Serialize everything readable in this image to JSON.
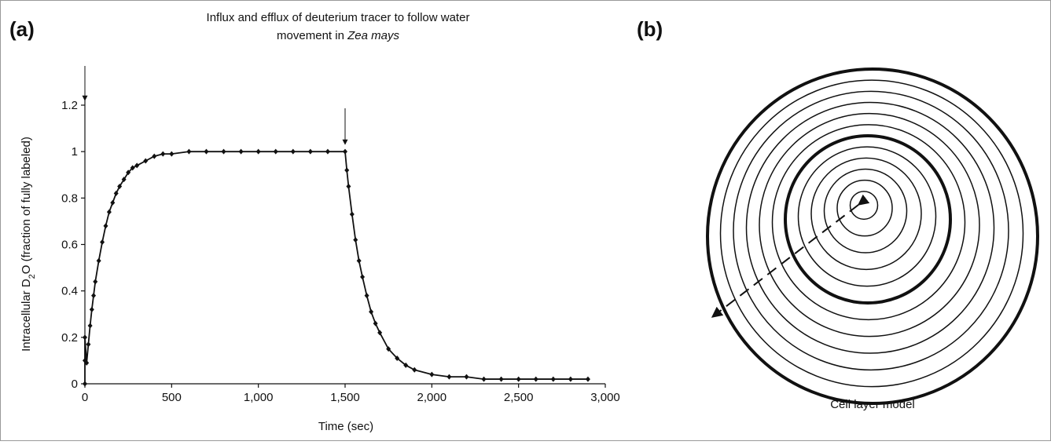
{
  "chart_data": {
    "type": "line",
    "panel_label": "(a)",
    "annotation": {
      "line1": "Influx and efflux of deuterium tracer to follow water",
      "line2": "movement in ",
      "line2_italic": "Zea mays"
    },
    "x_label": "Time (sec)",
    "y_label": {
      "part1": "Intracellular D",
      "sub": "2",
      "part2": "O (fraction of fully labeled)"
    },
    "x": [
      0,
      0,
      0,
      10,
      20,
      30,
      40,
      50,
      60,
      80,
      100,
      120,
      140,
      160,
      180,
      200,
      225,
      250,
      275,
      300,
      350,
      400,
      450,
      500,
      600,
      700,
      800,
      900,
      1000,
      1100,
      1200,
      1300,
      1400,
      1500,
      1510,
      1520,
      1540,
      1560,
      1580,
      1600,
      1625,
      1650,
      1675,
      1700,
      1750,
      1800,
      1850,
      1900,
      2000,
      2100,
      2200,
      2300,
      2400,
      2500,
      2600,
      2700,
      2800,
      2900
    ],
    "series": [
      {
        "color": "#111111",
        "values": [
          0,
          0.1,
          0.2,
          0.09,
          0.17,
          0.25,
          0.32,
          0.38,
          0.44,
          0.53,
          0.61,
          0.68,
          0.74,
          0.78,
          0.82,
          0.85,
          0.88,
          0.91,
          0.93,
          0.94,
          0.96,
          0.98,
          0.99,
          0.99,
          1,
          1,
          1,
          1,
          1,
          1,
          1,
          1,
          1,
          1,
          0.92,
          0.85,
          0.73,
          0.62,
          0.53,
          0.46,
          0.38,
          0.31,
          0.26,
          0.22,
          0.15,
          0.11,
          0.08,
          0.06,
          0.04,
          0.03,
          0.03,
          0.02,
          0.02,
          0.02,
          0.02,
          0.02,
          0.02,
          0.02
        ]
      }
    ],
    "xlim": [
      0,
      3000
    ],
    "xticks": [
      0,
      500,
      {
        "value": 1000,
        "label": "1,000"
      },
      {
        "value": 1500,
        "label": "1,500"
      },
      {
        "value": 2000,
        "label": "2,000"
      },
      {
        "value": 2500,
        "label": "2,500"
      },
      {
        "value": 3000,
        "label": "3,000"
      }
    ],
    "ylim": [
      0,
      1.2
    ],
    "yticks": [
      0,
      0.2,
      0.4,
      0.6,
      0.8,
      1,
      1.2
    ],
    "grid": false
  },
  "diagram": {
    "panel_label": "(b)",
    "caption": "Cell layer model"
  }
}
